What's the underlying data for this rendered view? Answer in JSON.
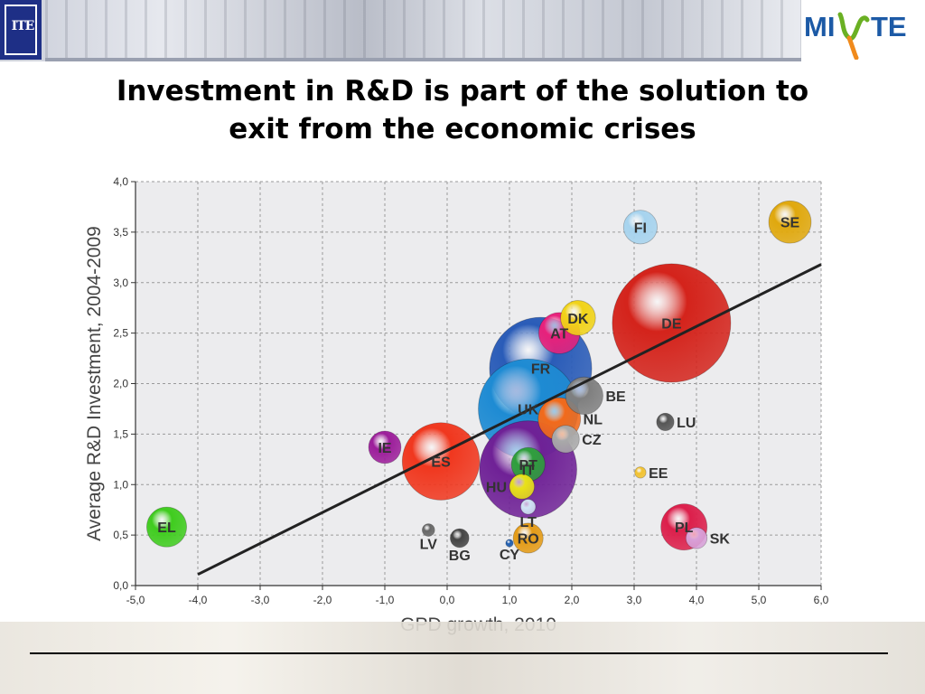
{
  "header": {
    "left_logo": {
      "text": "ITE",
      "icon": "ite-logo-icon"
    },
    "right_logo": {
      "text": "MINTE",
      "icon": "minte-logo-icon",
      "colors": {
        "blue": "#1c5aa6",
        "green": "#6ab023",
        "orange": "#f08a1c"
      }
    }
  },
  "slide": {
    "title_line1": "Investment in R&D is part of the solution to",
    "title_line2": "exit from the economic crises"
  },
  "chart_data": {
    "type": "scatter",
    "xlabel": "GPD growth, 2010",
    "ylabel": "Average R&D Investment, 2004-2009",
    "xlim": [
      -5.0,
      6.0
    ],
    "ylim": [
      0.0,
      4.0
    ],
    "x_ticks": [
      "-5,0",
      "-4,0",
      "-3,0",
      "-2,0",
      "-1,0",
      "0,0",
      "1,0",
      "2,0",
      "3,0",
      "4,0",
      "5,0",
      "6,0"
    ],
    "y_ticks": [
      "0,0",
      "0,5",
      "1,0",
      "1,5",
      "2,0",
      "2,5",
      "3,0",
      "3,5",
      "4,0"
    ],
    "grid": true,
    "trend_line": {
      "x": [
        -4.0,
        6.0
      ],
      "y": [
        0.11,
        3.18
      ],
      "color": "#222222"
    },
    "points": [
      {
        "label": "SE",
        "x": 5.5,
        "y": 3.6,
        "size": 0.34,
        "color": "#e0a80d"
      },
      {
        "label": "FI",
        "x": 3.1,
        "y": 3.55,
        "size": 0.27,
        "color": "#a6d3ee"
      },
      {
        "label": "DE",
        "x": 3.6,
        "y": 2.6,
        "size": 0.95,
        "color": "#d4231b"
      },
      {
        "label": "DK",
        "x": 2.1,
        "y": 2.65,
        "size": 0.28,
        "color": "#f1d317"
      },
      {
        "label": "AT",
        "x": 1.8,
        "y": 2.5,
        "size": 0.33,
        "color": "#e8217b"
      },
      {
        "label": "FR",
        "x": 1.5,
        "y": 2.15,
        "size": 0.82,
        "color": "#2a5cb8"
      },
      {
        "label": "BE",
        "x": 2.2,
        "y": 1.88,
        "size": 0.3,
        "color": "#7f7f7f"
      },
      {
        "label": "UK",
        "x": 1.3,
        "y": 1.75,
        "size": 0.8,
        "color": "#1e8bd3"
      },
      {
        "label": "NL",
        "x": 1.8,
        "y": 1.65,
        "size": 0.34,
        "color": "#f26a1b"
      },
      {
        "label": "CZ",
        "x": 1.9,
        "y": 1.45,
        "size": 0.22,
        "color": "#a9a9a9"
      },
      {
        "label": "LU",
        "x": 3.5,
        "y": 1.62,
        "size": 0.14,
        "color": "#555555"
      },
      {
        "label": "EE",
        "x": 3.1,
        "y": 1.12,
        "size": 0.09,
        "color": "#f2c230"
      },
      {
        "label": "IE",
        "x": -1.0,
        "y": 1.37,
        "size": 0.26,
        "color": "#9c1d9a"
      },
      {
        "label": "ES",
        "x": -0.1,
        "y": 1.23,
        "size": 0.62,
        "color": "#f0371e"
      },
      {
        "label": "IT",
        "x": 1.3,
        "y": 1.15,
        "size": 0.78,
        "color": "#6f2196"
      },
      {
        "label": "PT",
        "x": 1.3,
        "y": 1.2,
        "size": 0.27,
        "color": "#2e9e3c"
      },
      {
        "label": "HU",
        "x": 1.2,
        "y": 0.98,
        "size": 0.2,
        "color": "#e9e218"
      },
      {
        "label": "LT",
        "x": 1.3,
        "y": 0.78,
        "size": 0.12,
        "color": "#d0e4f4"
      },
      {
        "label": "EL",
        "x": -4.5,
        "y": 0.58,
        "size": 0.32,
        "color": "#3fcc1e"
      },
      {
        "label": "LV",
        "x": -0.3,
        "y": 0.55,
        "size": 0.1,
        "color": "#666666"
      },
      {
        "label": "BG",
        "x": 0.2,
        "y": 0.47,
        "size": 0.15,
        "color": "#444444"
      },
      {
        "label": "CY",
        "x": 1.0,
        "y": 0.42,
        "size": 0.06,
        "color": "#1e5db0"
      },
      {
        "label": "RO",
        "x": 1.3,
        "y": 0.47,
        "size": 0.24,
        "color": "#e49b16"
      },
      {
        "label": "PL",
        "x": 3.8,
        "y": 0.58,
        "size": 0.37,
        "color": "#dc1f4b"
      },
      {
        "label": "SK",
        "x": 4.0,
        "y": 0.47,
        "size": 0.17,
        "color": "#d8a0d8"
      }
    ],
    "labels_outside": {
      "BE": "right",
      "NL": "right",
      "CZ": "right",
      "LU": "right",
      "EE": "right",
      "HU": "left",
      "LT": "below",
      "LV": "below",
      "BG": "below",
      "CY": "below",
      "SK": "right"
    }
  }
}
